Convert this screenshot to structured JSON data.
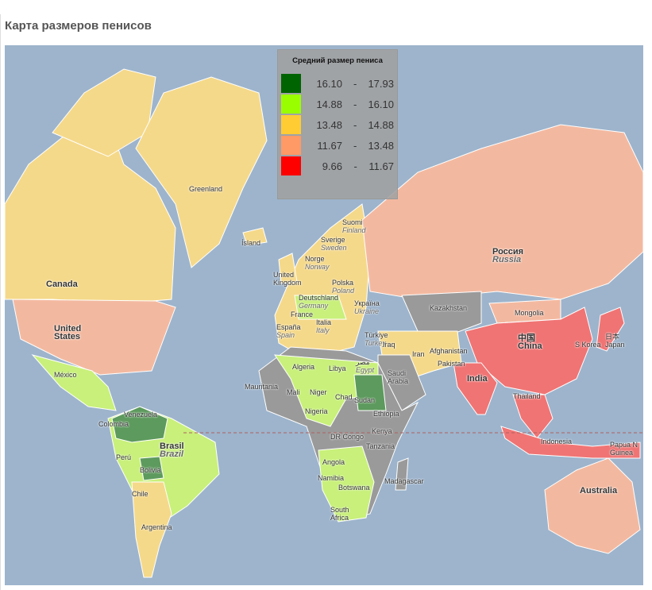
{
  "title": "Карта размеров пенисов",
  "legend": {
    "title": "Средний размер пениса",
    "items": [
      {
        "from": "16.10",
        "to": "17.93",
        "color": "#006400"
      },
      {
        "from": "14.88",
        "to": "16.10",
        "color": "#99ff00"
      },
      {
        "from": "13.48",
        "to": "14.88",
        "color": "#ffcc33"
      },
      {
        "from": "11.67",
        "to": "13.48",
        "color": "#ff9966"
      },
      {
        "from": "9.66",
        "to": "11.67",
        "color": "#ff0000"
      }
    ],
    "dash": "-"
  },
  "colors": {
    "ocean": "#9db4cc",
    "dark_green": "#5d9a5d",
    "light_green": "#c8f07a",
    "yellow": "#f5d98a",
    "salmon": "#f3b9a0",
    "red": "#f07474",
    "gray": "#9a9a9a",
    "equator": "#b06060"
  },
  "labels": {
    "greenland": "Greenland",
    "iceland": "Ísland",
    "canada": "Canada",
    "us1": "United",
    "us2": "States",
    "mexico": "México",
    "colombia": "Colombia",
    "venezuela": "Venezuela",
    "peru": "Perú",
    "brasil": "Brasil",
    "brazil": "Brazil",
    "bolivia": "Bolivia",
    "chile": "Chile",
    "argentina": "Argentina",
    "finland1": "Suomi",
    "finland2": "Finland",
    "sweden1": "Sverige",
    "sweden2": "Sweden",
    "norway1": "Norge",
    "norway2": "Norway",
    "uk1": "United",
    "uk2": "Kingdom",
    "poland1": "Polska",
    "poland2": "Poland",
    "germany1": "Deutschland",
    "germany2": "Germany",
    "france": "France",
    "spain1": "España",
    "spain2": "Spain",
    "italy1": "Italia",
    "italy2": "Italy",
    "ukraine1": "Україна",
    "ukraine2": "Ukraine",
    "turkey1": "Türkiye",
    "turkey2": "Turkey",
    "russia1": "Россия",
    "russia2": "Russia",
    "kazakhstan": "Kazakhstan",
    "mongolia": "Mongolia",
    "china1": "中国",
    "china2": "China",
    "india": "India",
    "pakistan": "Pakistan",
    "afghanistan": "Afghanistan",
    "iran": "Iran",
    "iraq": "Iraq",
    "saudi1": "Saudi",
    "saudi2": "Arabia",
    "algeria": "Algeria",
    "libya": "Libya",
    "egypt1": "مصر",
    "egypt2": "Egypt",
    "mauritania": "Mauritania",
    "mali": "Mali",
    "niger": "Niger",
    "chad": "Chad",
    "sudan": "Sudan",
    "nigeria": "Nigeria",
    "ethiopia": "Ethiopia",
    "drc": "DR Congo",
    "kenya": "Kenya",
    "tanzania": "Tanzania",
    "angola": "Angola",
    "namibia": "Namibia",
    "botswana": "Botswana",
    "sa1": "South",
    "sa2": "Africa",
    "madagascar": "Madagascar",
    "thailand": "Thailand",
    "indonesia": "Indonesia",
    "png1": "Papua N",
    "png2": "Guinea",
    "australia": "Australia",
    "korea": "S Korea",
    "japan1": "日本",
    "japan2": "Japan"
  }
}
